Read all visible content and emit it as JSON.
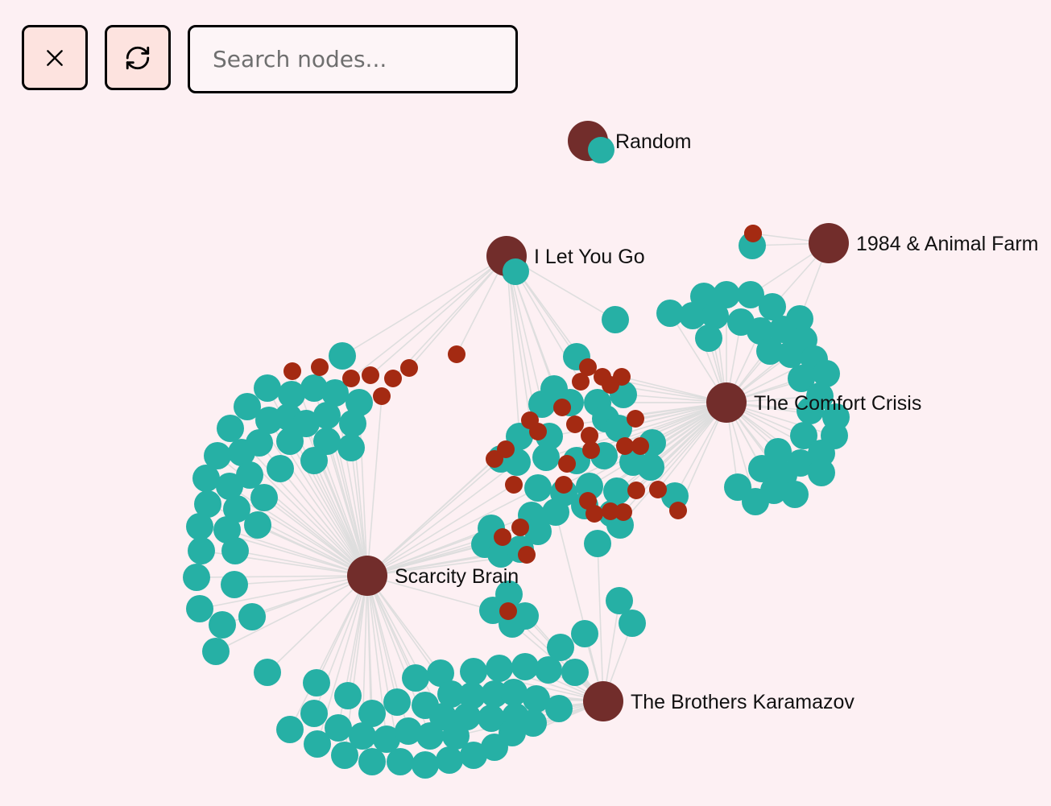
{
  "toolbar": {
    "close_icon": "close-icon",
    "refresh_icon": "refresh-icon"
  },
  "search": {
    "placeholder": "Search nodes...",
    "value": ""
  },
  "colors": {
    "hub": "#722d2b",
    "leaf": "#26b0a5",
    "accent": "#a42a12",
    "edge": "#dedede",
    "background": "#fdf0f3"
  },
  "hubs": [
    {
      "id": "random",
      "label": "Random"
    },
    {
      "id": "i-let-you-go",
      "label": "I Let You Go"
    },
    {
      "id": "1984-animal-farm",
      "label": "1984 & Animal Farm"
    },
    {
      "id": "the-comfort-crisis",
      "label": "The Comfort Crisis"
    },
    {
      "id": "scarcity-brain",
      "label": "Scarcity Brain"
    },
    {
      "id": "the-brothers-karamazov",
      "label": "The Brothers Karamazov"
    }
  ]
}
